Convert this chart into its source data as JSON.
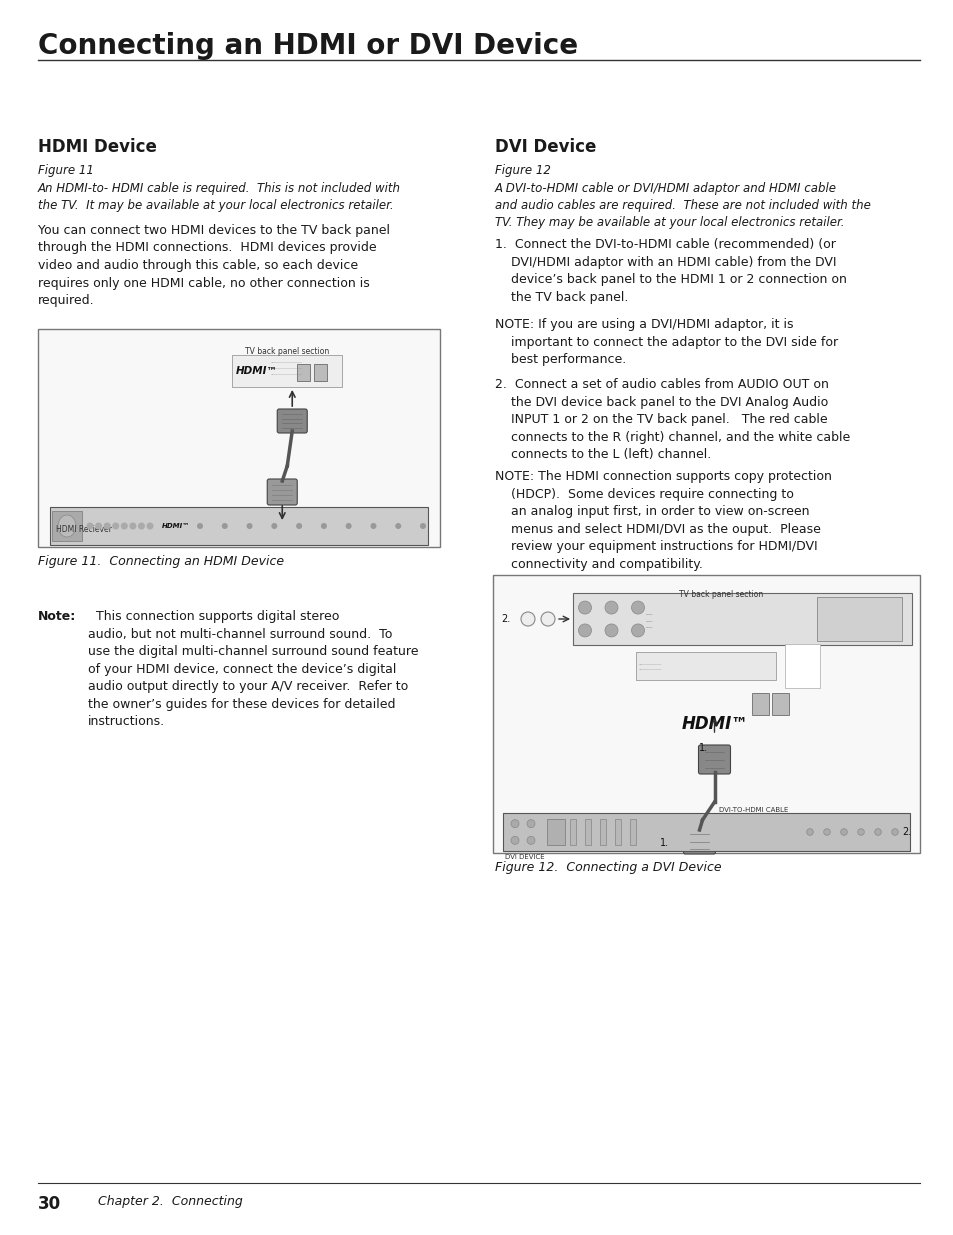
{
  "bg_color": "#ffffff",
  "page_width": 9.54,
  "page_height": 12.35,
  "title": "Connecting an HDMI or DVI Device",
  "text_color": "#1a1a1a",
  "left_heading": "HDMI Device",
  "left_fig_label": "Figure 11",
  "left_fig_caption": "An HDMI-to- HDMI cable is required.  This is not included with\nthe TV.  It may be available at your local electronics retailer.",
  "left_body": "You can connect two HDMI devices to the TV back panel\nthrough the HDMI connections.  HDMI devices provide\nvideo and audio through this cable, so each device\nrequires only one HDMI cable, no other connection is\nrequired.",
  "left_figure_caption": "Figure 11.  Connecting an HDMI Device",
  "left_note_bold": "Note:",
  "left_note_rest": "  This connection supports digital stereo\naudio, but not multi-channel surround sound.  To\nuse the digital multi-channel surround sound feature\nof your HDMI device, connect the device’s digital\naudio output directly to your A/V receiver.  Refer to\nthe owner’s guides for these devices for detailed\ninstructions.",
  "right_heading": "DVI Device",
  "right_fig_label": "Figure 12",
  "right_fig_caption": "A DVI-to-HDMI cable or DVI/HDMI adaptor and HDMI cable\nand audio cables are required.  These are not included with the\nTV. They may be available at your local electronics retailer.",
  "right_item1": "1.  Connect the DVI-to-HDMI cable (recommended) (or\n    DVI/HDMI adaptor with an HDMI cable) from the DVI\n    device’s back panel to the HDMI 1 or 2 connection on\n    the TV back panel.",
  "right_note1": "NOTE: If you are using a DVI/HDMI adaptor, it is\n    important to connect the adaptor to the DVI side for\n    best performance.",
  "right_item2": "2.  Connect a set of audio cables from AUDIO OUT on\n    the DVI device back panel to the DVI Analog Audio\n    INPUT 1 or 2 on the TV back panel.   The red cable\n    connects to the R (right) channel, and the white cable\n    connects to the L (left) channel.",
  "right_note2": "NOTE: The HDMI connection supports copy protection\n    (HDCP).  Some devices require connecting to\n    an analog input first, in order to view on-screen\n    menus and select HDMI/DVI as the ouput.  Please\n    review your equipment instructions for HDMI/DVI\n    connectivity and compatibility.",
  "right_figure_caption": "Figure 12.  Connecting a DVI Device",
  "footer_number": "30",
  "footer_text": "Chapter 2.  Connecting"
}
